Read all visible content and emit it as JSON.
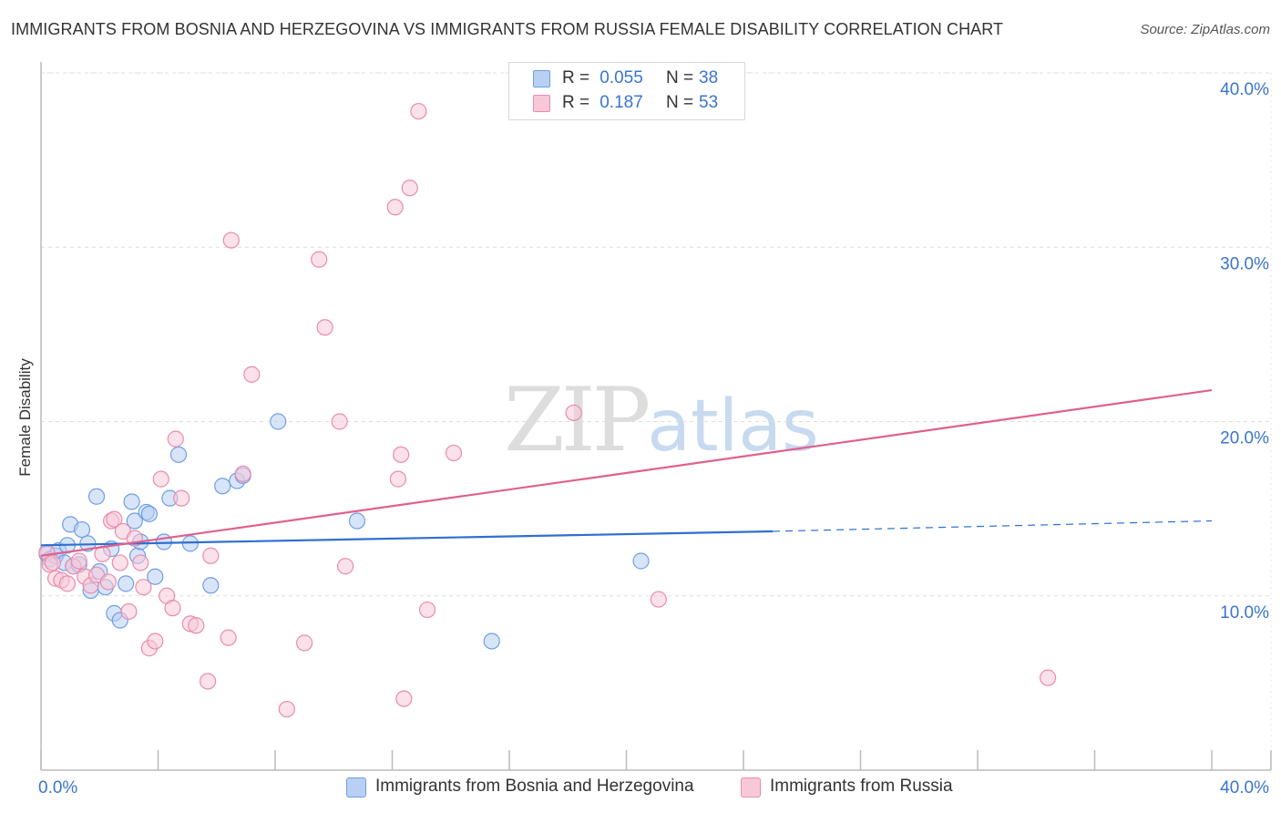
{
  "chart_data": {
    "type": "scatter",
    "title": "IMMIGRANTS FROM BOSNIA AND HERZEGOVINA VS IMMIGRANTS FROM RUSSIA FEMALE DISABILITY CORRELATION CHART",
    "source": "Source: ZipAtlas.com",
    "xlabel": "",
    "ylabel": "Female Disability",
    "xlim": [
      0,
      40
    ],
    "ylim": [
      0,
      40
    ],
    "x_tick_labels": [
      "0.0%",
      "40.0%"
    ],
    "y_ticks": [
      10,
      20,
      30,
      40
    ],
    "y_tick_labels": [
      "10.0%",
      "20.0%",
      "30.0%",
      "40.0%"
    ],
    "grid": true,
    "watermark": {
      "zip": "ZIP",
      "atlas": "atlas"
    },
    "legend": [
      {
        "r_label": "R =",
        "r_value": "0.055",
        "n_label": "N =",
        "n_value": "38"
      },
      {
        "r_label": "R =",
        "r_value": "0.187",
        "n_label": "N =",
        "n_value": "53"
      }
    ],
    "series": [
      {
        "name": "Immigrants from Bosnia and Herzegovina",
        "color": "#6f9ee6",
        "fill": "#b8d0f3",
        "trend": {
          "x": [
            0,
            25,
            40
          ],
          "y": [
            12.9,
            13.7,
            14.3
          ],
          "solid_until": 25,
          "color": "#2f6fd0"
        },
        "points": [
          [
            0.2,
            12.4
          ],
          [
            0.3,
            12.1
          ],
          [
            0.5,
            12.3
          ],
          [
            0.6,
            12.6
          ],
          [
            0.8,
            11.9
          ],
          [
            0.9,
            12.9
          ],
          [
            1.0,
            14.1
          ],
          [
            1.1,
            11.7
          ],
          [
            1.3,
            11.8
          ],
          [
            1.4,
            13.8
          ],
          [
            1.6,
            13.0
          ],
          [
            1.7,
            10.3
          ],
          [
            1.9,
            15.7
          ],
          [
            2.0,
            11.4
          ],
          [
            2.2,
            10.5
          ],
          [
            2.4,
            12.7
          ],
          [
            2.5,
            9.0
          ],
          [
            2.7,
            8.6
          ],
          [
            2.9,
            10.7
          ],
          [
            3.1,
            15.4
          ],
          [
            3.2,
            14.3
          ],
          [
            3.3,
            12.3
          ],
          [
            3.4,
            13.1
          ],
          [
            3.6,
            14.8
          ],
          [
            3.7,
            14.7
          ],
          [
            3.9,
            11.1
          ],
          [
            4.2,
            13.1
          ],
          [
            4.4,
            15.6
          ],
          [
            4.7,
            18.1
          ],
          [
            5.1,
            13.0
          ],
          [
            5.8,
            10.6
          ],
          [
            6.2,
            16.3
          ],
          [
            6.7,
            16.6
          ],
          [
            6.9,
            16.9
          ],
          [
            8.1,
            20.0
          ],
          [
            10.8,
            14.3
          ],
          [
            15.4,
            7.4
          ],
          [
            20.5,
            12.0
          ]
        ]
      },
      {
        "name": "Immigrants from Russia",
        "color": "#e98cac",
        "fill": "#f8c8d8",
        "trend": {
          "x": [
            0,
            40
          ],
          "y": [
            12.3,
            21.8
          ],
          "solid_until": 40,
          "color": "#e0608e"
        },
        "points": [
          [
            0.2,
            12.5
          ],
          [
            0.3,
            11.8
          ],
          [
            0.4,
            11.9
          ],
          [
            0.5,
            11.0
          ],
          [
            0.7,
            10.9
          ],
          [
            0.9,
            10.7
          ],
          [
            1.1,
            11.7
          ],
          [
            1.3,
            12.0
          ],
          [
            1.5,
            11.1
          ],
          [
            1.7,
            10.6
          ],
          [
            1.9,
            11.2
          ],
          [
            2.1,
            12.4
          ],
          [
            2.3,
            10.8
          ],
          [
            2.4,
            14.3
          ],
          [
            2.5,
            14.4
          ],
          [
            2.7,
            11.9
          ],
          [
            2.8,
            13.7
          ],
          [
            3.0,
            9.1
          ],
          [
            3.2,
            13.3
          ],
          [
            3.4,
            11.9
          ],
          [
            3.5,
            10.5
          ],
          [
            3.7,
            7.0
          ],
          [
            3.9,
            7.4
          ],
          [
            4.1,
            16.7
          ],
          [
            4.3,
            10.0
          ],
          [
            4.5,
            9.3
          ],
          [
            4.6,
            19.0
          ],
          [
            4.8,
            15.6
          ],
          [
            5.1,
            8.4
          ],
          [
            5.3,
            8.3
          ],
          [
            5.7,
            5.1
          ],
          [
            5.8,
            12.3
          ],
          [
            6.4,
            7.6
          ],
          [
            6.5,
            30.4
          ],
          [
            6.9,
            17.0
          ],
          [
            7.2,
            22.7
          ],
          [
            8.4,
            3.5
          ],
          [
            9.0,
            7.3
          ],
          [
            9.5,
            29.3
          ],
          [
            9.7,
            25.4
          ],
          [
            10.2,
            20.0
          ],
          [
            10.4,
            11.7
          ],
          [
            12.1,
            32.3
          ],
          [
            12.2,
            16.7
          ],
          [
            12.3,
            18.1
          ],
          [
            12.4,
            4.1
          ],
          [
            12.6,
            33.4
          ],
          [
            12.9,
            37.8
          ],
          [
            13.2,
            9.2
          ],
          [
            14.1,
            18.2
          ],
          [
            18.2,
            20.5
          ],
          [
            21.1,
            9.8
          ],
          [
            34.4,
            5.3
          ]
        ]
      }
    ]
  }
}
